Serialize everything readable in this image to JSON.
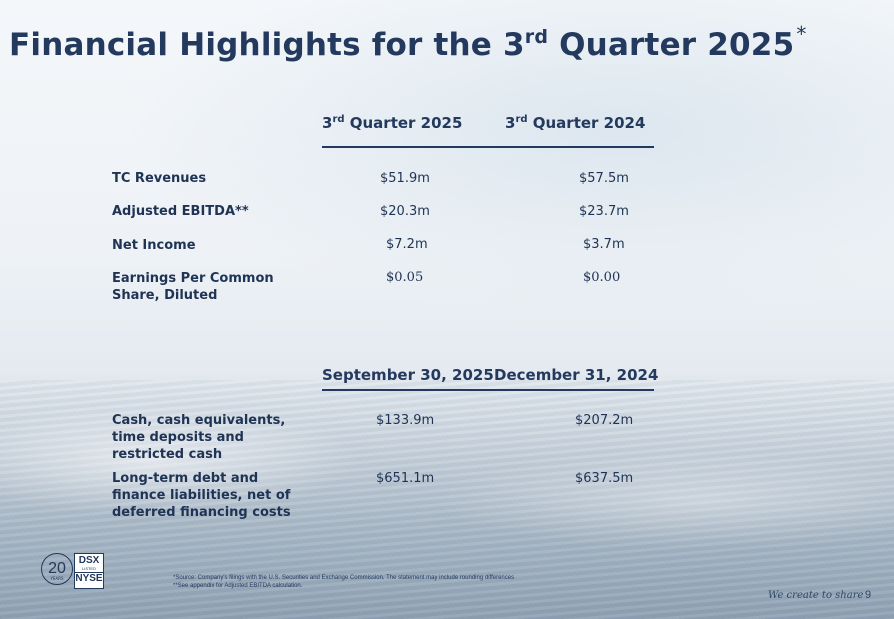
{
  "title": {
    "main": "Financial Highlights for the 3",
    "sup": "rd",
    "rest": " Quarter 2025",
    "asterisk": "*"
  },
  "income_table": {
    "columns": [
      {
        "prefix": "3",
        "sup": "rd",
        "rest": " Quarter 2025"
      },
      {
        "prefix": "3",
        "sup": "rd",
        "rest": " Quarter 2024"
      }
    ],
    "rows": [
      {
        "label": "TC Revenues",
        "values": [
          "$51.9m",
          "$57.5m"
        ]
      },
      {
        "label": "Adjusted EBITDA**",
        "values": [
          "$20.3m",
          "$23.7m"
        ]
      },
      {
        "label": "Net Income",
        "values": [
          "$7.2m",
          "$3.7m"
        ]
      },
      {
        "label": "Earnings Per Common Share, Diluted",
        "values": [
          "$0.05",
          "$0.00"
        ]
      }
    ]
  },
  "balance_table": {
    "columns": [
      "September 30, 2025",
      "December 31, 2024"
    ],
    "rows": [
      {
        "label": "Cash, cash equivalents, time deposits and restricted cash",
        "values": [
          "$133.9m",
          "$207.2m"
        ]
      },
      {
        "label": "Long-term debt and finance liabilities, net of deferred financing costs",
        "values": [
          "$651.1m",
          "$637.5m"
        ]
      }
    ]
  },
  "logo": {
    "years_number": "20",
    "years_label": "YEARS",
    "ticker": "DSX",
    "listed": "LISTED",
    "exchange": "NYSE"
  },
  "footnotes": [
    "*Source: Company's filings with the U.S. Securities and Exchange Commission. The statement may include rounding differences",
    "**See appendix for Adjusted EBITDA calculation."
  ],
  "footer": {
    "tagline": "We create to share",
    "page_number": "9"
  },
  "colors": {
    "navy": "#23395d"
  }
}
